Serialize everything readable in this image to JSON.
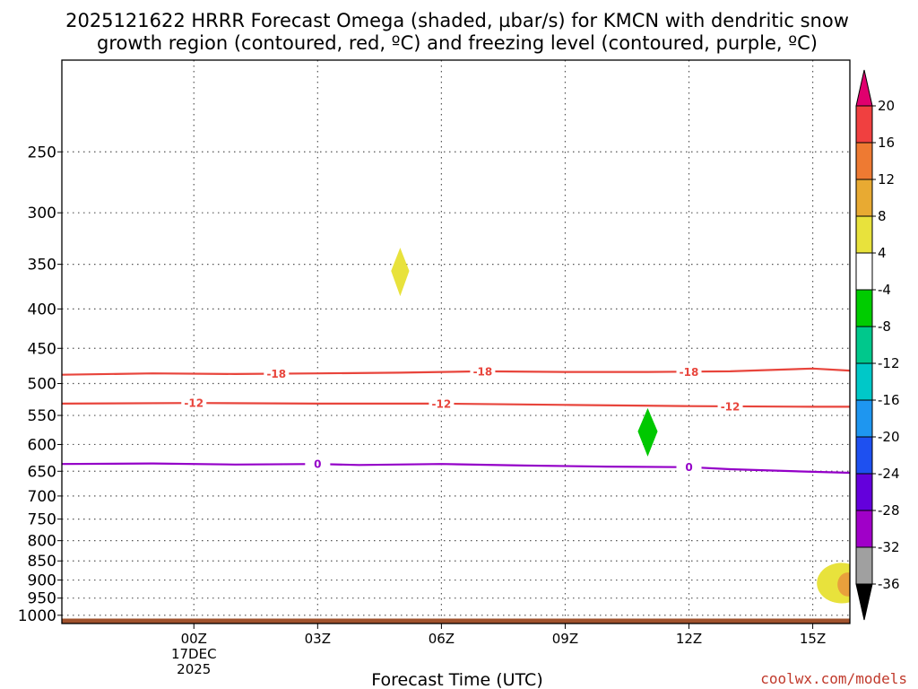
{
  "chart_data": {
    "type": "time-height cross section",
    "title_line1": "2025121622 HRRR Forecast Omega (shaded, µbar/s) for KMCN with dendritic snow",
    "title_line2": "growth region (contoured, red, ºC) and freezing level (contoured, purple, ºC)",
    "xlabel": "Forecast Time (UTC)",
    "credit": "coolwx.com/models",
    "y_axis": {
      "scale": "log-pressure",
      "range_hPa": [
        1025,
        190
      ],
      "ticks": [
        250,
        300,
        350,
        400,
        450,
        500,
        550,
        600,
        650,
        700,
        750,
        800,
        850,
        900,
        950,
        1000
      ]
    },
    "x_axis": {
      "range_hours_from_00Z": [
        -3.2,
        15.9
      ],
      "ticks": [
        {
          "hour": 0,
          "label": "00Z",
          "sub1": "17DEC",
          "sub2": "2025"
        },
        {
          "hour": 3,
          "label": "03Z"
        },
        {
          "hour": 6,
          "label": "06Z"
        },
        {
          "hour": 9,
          "label": "09Z"
        },
        {
          "hour": 12,
          "label": "12Z"
        },
        {
          "hour": 15,
          "label": "15Z"
        }
      ]
    },
    "grid": true,
    "ground_band_hPa": 1010,
    "ground_color": "#a0522d",
    "contours": [
      {
        "level": -18,
        "label": "-18",
        "color": "#e8453c",
        "points": [
          [
            -3.2,
            487
          ],
          [
            -1,
            485
          ],
          [
            1,
            486
          ],
          [
            3,
            485
          ],
          [
            5,
            484
          ],
          [
            7,
            482
          ],
          [
            9,
            483
          ],
          [
            11,
            483
          ],
          [
            13,
            482
          ],
          [
            15,
            478
          ],
          [
            15.9,
            481
          ]
        ],
        "label_hours": [
          2,
          7,
          12
        ]
      },
      {
        "level": -12,
        "label": "-12",
        "color": "#e8453c",
        "points": [
          [
            -3.2,
            531
          ],
          [
            0,
            530
          ],
          [
            3,
            531
          ],
          [
            6,
            531
          ],
          [
            9,
            533
          ],
          [
            12,
            535
          ],
          [
            15,
            536
          ],
          [
            15.9,
            536
          ]
        ],
        "label_hours": [
          0,
          6,
          13
        ]
      },
      {
        "level": 0,
        "label": "0",
        "color": "#9400c8",
        "points": [
          [
            -3.2,
            636
          ],
          [
            -1,
            635
          ],
          [
            1,
            637
          ],
          [
            3,
            636
          ],
          [
            4,
            638
          ],
          [
            6,
            636
          ],
          [
            8,
            639
          ],
          [
            10,
            641
          ],
          [
            12,
            642
          ],
          [
            13,
            646
          ],
          [
            15,
            651
          ],
          [
            15.9,
            653
          ]
        ],
        "label_hours": [
          3,
          12
        ]
      }
    ],
    "shaded_features": [
      {
        "shape": "diamond",
        "center_hour": 5.0,
        "center_hPa": 357,
        "half_width_h": 0.22,
        "top_hPa": 333,
        "bottom_hPa": 385,
        "color": "#e8e23c"
      },
      {
        "shape": "diamond",
        "center_hour": 11.0,
        "center_hPa": 577,
        "half_width_h": 0.24,
        "top_hPa": 538,
        "bottom_hPa": 622,
        "color": "#00c800"
      },
      {
        "shape": "blob",
        "center_hour": 15.7,
        "center_hPa": 905,
        "half_width_h": 0.6,
        "top_hPa": 855,
        "bottom_hPa": 965,
        "color": "#e8e23c"
      },
      {
        "shape": "blob",
        "center_hour": 15.85,
        "center_hPa": 910,
        "half_width_h": 0.25,
        "top_hPa": 880,
        "bottom_hPa": 945,
        "color": "#e8a03c"
      }
    ],
    "colorbar": {
      "top_color": "#e0006e",
      "bottom_color": "#000000",
      "segments": [
        {
          "from": 16,
          "to": 20,
          "color": "#f04040"
        },
        {
          "from": 12,
          "to": 16,
          "color": "#ee7a32"
        },
        {
          "from": 8,
          "to": 12,
          "color": "#e8aa32"
        },
        {
          "from": 4,
          "to": 8,
          "color": "#e8e23c"
        },
        {
          "from": -4,
          "to": 4,
          "color": "#ffffff"
        },
        {
          "from": -8,
          "to": -4,
          "color": "#00cc00"
        },
        {
          "from": -12,
          "to": -8,
          "color": "#00c88c"
        },
        {
          "from": -16,
          "to": -12,
          "color": "#00c8c8"
        },
        {
          "from": -20,
          "to": -16,
          "color": "#1e96f0"
        },
        {
          "from": -24,
          "to": -20,
          "color": "#1e50f0"
        },
        {
          "from": -28,
          "to": -24,
          "color": "#6400dc"
        },
        {
          "from": -32,
          "to": -28,
          "color": "#a000c8"
        },
        {
          "from": -36,
          "to": -32,
          "color": "#a0a0a0"
        }
      ],
      "labels": [
        "20",
        "16",
        "12",
        "8",
        "4",
        "-4",
        "-8",
        "-12",
        "-16",
        "-20",
        "-24",
        "-28",
        "-32",
        "-36"
      ]
    }
  }
}
